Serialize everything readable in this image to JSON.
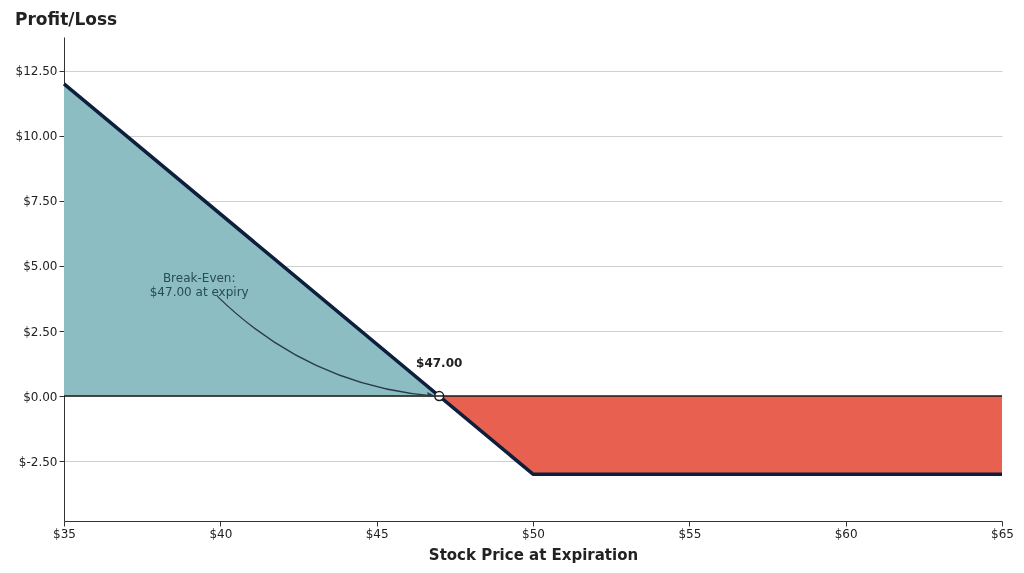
{
  "chart_data": {
    "type": "line",
    "title": "Profit/Loss",
    "xlabel": "Stock Price at Expiration",
    "xlim": [
      35,
      65
    ],
    "ylim": [
      -4.8,
      13.8
    ],
    "xticks": [
      {
        "value": 35,
        "label": "$35"
      },
      {
        "value": 40,
        "label": "$40"
      },
      {
        "value": 45,
        "label": "$45"
      },
      {
        "value": 50,
        "label": "$50"
      },
      {
        "value": 55,
        "label": "$55"
      },
      {
        "value": 60,
        "label": "$60"
      },
      {
        "value": 65,
        "label": "$65"
      }
    ],
    "yticks": [
      {
        "value": -2.5,
        "label": "$-2.50"
      },
      {
        "value": 0,
        "label": "$0.00"
      },
      {
        "value": 2.5,
        "label": "$2.50"
      },
      {
        "value": 5,
        "label": "$5.00"
      },
      {
        "value": 7.5,
        "label": "$7.50"
      },
      {
        "value": 10,
        "label": "$10.00"
      },
      {
        "value": 12.5,
        "label": "$12.50"
      }
    ],
    "grid": "y",
    "series": [
      {
        "type": "area",
        "color": "#8bbdc2",
        "x": [
          35,
          47
        ],
        "values": [
          12,
          0
        ]
      },
      {
        "type": "area",
        "color": "#e8604f",
        "x": [
          47,
          50,
          65
        ],
        "values": [
          0,
          -3,
          -3
        ]
      },
      {
        "color": "#0d1f3d",
        "x": [
          35,
          50,
          65
        ],
        "values": [
          12,
          -3,
          -3
        ]
      },
      {
        "type": "scatter",
        "color": "#ffffff",
        "x": [
          47
        ],
        "values": [
          0
        ]
      }
    ],
    "ref_lines": [
      {
        "axis": "y",
        "value": 0,
        "color": "#1a1a1a"
      }
    ],
    "annotations": [
      {
        "text": "$47.00",
        "x": 47,
        "y": 0
      },
      {
        "text": "Break-Even:\n$47.00 at expiry",
        "x": 47,
        "y": 0
      }
    ]
  }
}
